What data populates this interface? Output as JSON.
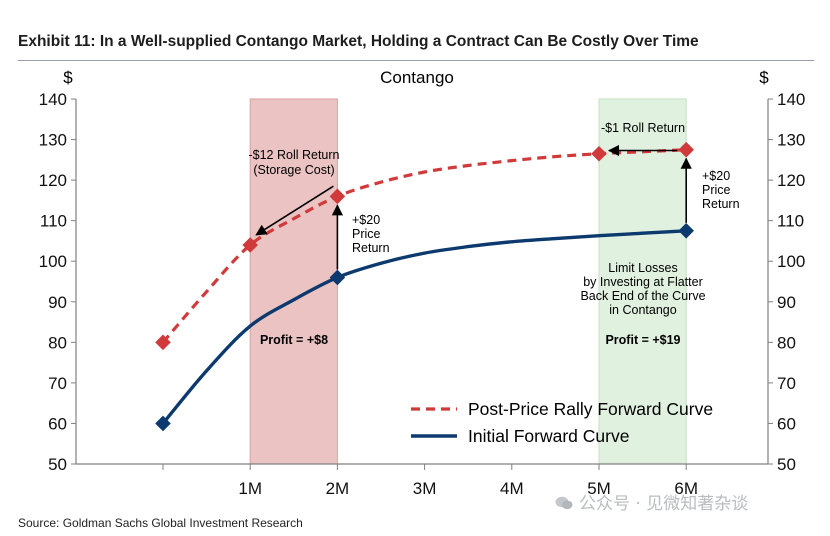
{
  "page": {
    "title": "Exhibit 11: In a Well-supplied Contango Market, Holding a Contract Can Be Costly Over Time",
    "source": "Source: Goldman Sachs Global Investment Research",
    "watermark": "公众号 · 见微知著杂谈"
  },
  "colors": {
    "post_rally": "#d03a3a",
    "initial": "#0d3a6e",
    "roll_band": "#ecc3c3",
    "flat_band": "#e1f1df",
    "axis": "#808080"
  },
  "chart_data": {
    "type": "line",
    "title": "Contango",
    "ylabel_left": "$",
    "ylabel_right": "$",
    "ylim": [
      50,
      140
    ],
    "yticks": [
      50,
      60,
      70,
      80,
      90,
      100,
      110,
      120,
      130,
      140
    ],
    "x_categories": [
      "",
      "1M",
      "2M",
      "3M",
      "4M",
      "5M",
      "6M"
    ],
    "series": [
      {
        "name": "Post-Price Rally Forward Curve",
        "style": "dashed",
        "color": "#d03a3a",
        "points": [
          [
            0,
            80
          ],
          [
            1,
            104
          ],
          [
            2,
            116
          ],
          [
            5,
            126.5
          ],
          [
            6,
            127.5
          ]
        ],
        "curve": [
          [
            0,
            80
          ],
          [
            0.5,
            92.5
          ],
          [
            1,
            104
          ],
          [
            1.5,
            110.5
          ],
          [
            2,
            116
          ],
          [
            2.5,
            119.5
          ],
          [
            3,
            122
          ],
          [
            3.5,
            123.6
          ],
          [
            4,
            124.8
          ],
          [
            4.5,
            125.8
          ],
          [
            5,
            126.5
          ],
          [
            5.5,
            127
          ],
          [
            6,
            127.5
          ]
        ]
      },
      {
        "name": "Initial Forward Curve",
        "style": "solid",
        "color": "#0d3a6e",
        "points": [
          [
            0,
            60
          ],
          [
            2,
            96
          ],
          [
            6,
            107.5
          ]
        ],
        "curve": [
          [
            0,
            60
          ],
          [
            0.5,
            73
          ],
          [
            1,
            84
          ],
          [
            1.5,
            90.5
          ],
          [
            2,
            96
          ],
          [
            2.5,
            99.5
          ],
          [
            3,
            102
          ],
          [
            3.5,
            103.6
          ],
          [
            4,
            104.8
          ],
          [
            4.5,
            105.6
          ],
          [
            5,
            106.3
          ],
          [
            5.5,
            106.9
          ],
          [
            6,
            107.5
          ]
        ]
      }
    ],
    "bands": [
      {
        "from": 1,
        "to": 2,
        "color": "#ecc3c3",
        "label": "Profit = +$8"
      },
      {
        "from": 5,
        "to": 6,
        "color": "#e1f1df",
        "label": "Profit = +$19"
      }
    ],
    "annotations": {
      "roll_left": "-$12 Roll Return\n(Storage Cost)",
      "roll_right": "-$1 Roll Return",
      "price_left": "+$20\nPrice\nReturn",
      "price_right": "+$20\nPrice\nReturn",
      "limit_losses": "Limit Losses\nby Investing at Flatter\nBack End of the Curve\nin Contango"
    },
    "legend_position": "bottom-right",
    "grid": false
  }
}
